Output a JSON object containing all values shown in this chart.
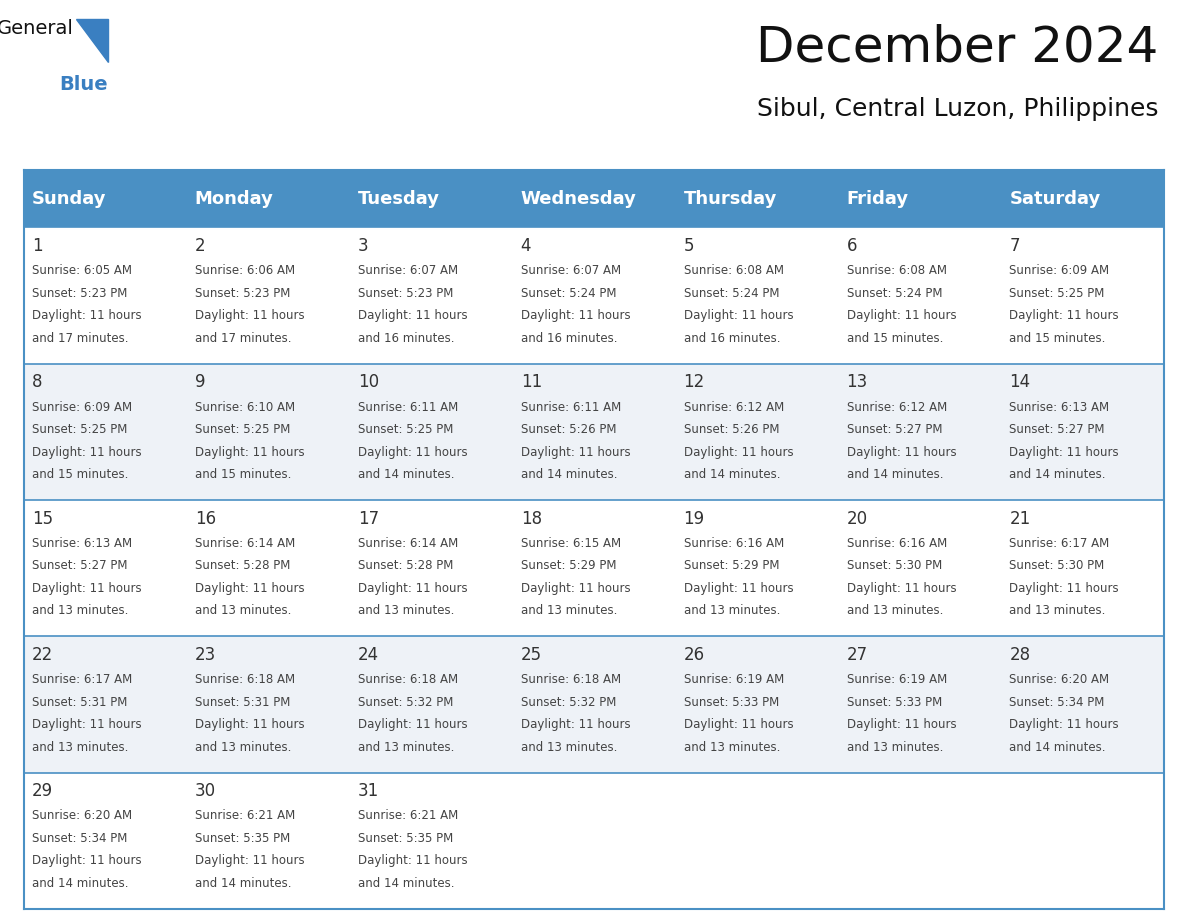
{
  "title": "December 2024",
  "subtitle": "Sibul, Central Luzon, Philippines",
  "header_color": "#4a90c4",
  "header_text_color": "#ffffff",
  "day_names": [
    "Sunday",
    "Monday",
    "Tuesday",
    "Wednesday",
    "Thursday",
    "Friday",
    "Saturday"
  ],
  "grid_line_color": "#4a90c4",
  "day_num_color": "#333333",
  "cell_text_color": "#444444",
  "title_fontsize": 36,
  "subtitle_fontsize": 18,
  "header_fontsize": 13,
  "day_num_fontsize": 12,
  "cell_fontsize": 8.5,
  "row_colors": [
    "#ffffff",
    "#eef2f7"
  ],
  "weeks": [
    [
      {
        "day": 1,
        "sunrise": "6:05 AM",
        "sunset": "5:23 PM",
        "daylight_line1": "Daylight: 11 hours",
        "daylight_line2": "and 17 minutes."
      },
      {
        "day": 2,
        "sunrise": "6:06 AM",
        "sunset": "5:23 PM",
        "daylight_line1": "Daylight: 11 hours",
        "daylight_line2": "and 17 minutes."
      },
      {
        "day": 3,
        "sunrise": "6:07 AM",
        "sunset": "5:23 PM",
        "daylight_line1": "Daylight: 11 hours",
        "daylight_line2": "and 16 minutes."
      },
      {
        "day": 4,
        "sunrise": "6:07 AM",
        "sunset": "5:24 PM",
        "daylight_line1": "Daylight: 11 hours",
        "daylight_line2": "and 16 minutes."
      },
      {
        "day": 5,
        "sunrise": "6:08 AM",
        "sunset": "5:24 PM",
        "daylight_line1": "Daylight: 11 hours",
        "daylight_line2": "and 16 minutes."
      },
      {
        "day": 6,
        "sunrise": "6:08 AM",
        "sunset": "5:24 PM",
        "daylight_line1": "Daylight: 11 hours",
        "daylight_line2": "and 15 minutes."
      },
      {
        "day": 7,
        "sunrise": "6:09 AM",
        "sunset": "5:25 PM",
        "daylight_line1": "Daylight: 11 hours",
        "daylight_line2": "and 15 minutes."
      }
    ],
    [
      {
        "day": 8,
        "sunrise": "6:09 AM",
        "sunset": "5:25 PM",
        "daylight_line1": "Daylight: 11 hours",
        "daylight_line2": "and 15 minutes."
      },
      {
        "day": 9,
        "sunrise": "6:10 AM",
        "sunset": "5:25 PM",
        "daylight_line1": "Daylight: 11 hours",
        "daylight_line2": "and 15 minutes."
      },
      {
        "day": 10,
        "sunrise": "6:11 AM",
        "sunset": "5:25 PM",
        "daylight_line1": "Daylight: 11 hours",
        "daylight_line2": "and 14 minutes."
      },
      {
        "day": 11,
        "sunrise": "6:11 AM",
        "sunset": "5:26 PM",
        "daylight_line1": "Daylight: 11 hours",
        "daylight_line2": "and 14 minutes."
      },
      {
        "day": 12,
        "sunrise": "6:12 AM",
        "sunset": "5:26 PM",
        "daylight_line1": "Daylight: 11 hours",
        "daylight_line2": "and 14 minutes."
      },
      {
        "day": 13,
        "sunrise": "6:12 AM",
        "sunset": "5:27 PM",
        "daylight_line1": "Daylight: 11 hours",
        "daylight_line2": "and 14 minutes."
      },
      {
        "day": 14,
        "sunrise": "6:13 AM",
        "sunset": "5:27 PM",
        "daylight_line1": "Daylight: 11 hours",
        "daylight_line2": "and 14 minutes."
      }
    ],
    [
      {
        "day": 15,
        "sunrise": "6:13 AM",
        "sunset": "5:27 PM",
        "daylight_line1": "Daylight: 11 hours",
        "daylight_line2": "and 13 minutes."
      },
      {
        "day": 16,
        "sunrise": "6:14 AM",
        "sunset": "5:28 PM",
        "daylight_line1": "Daylight: 11 hours",
        "daylight_line2": "and 13 minutes."
      },
      {
        "day": 17,
        "sunrise": "6:14 AM",
        "sunset": "5:28 PM",
        "daylight_line1": "Daylight: 11 hours",
        "daylight_line2": "and 13 minutes."
      },
      {
        "day": 18,
        "sunrise": "6:15 AM",
        "sunset": "5:29 PM",
        "daylight_line1": "Daylight: 11 hours",
        "daylight_line2": "and 13 minutes."
      },
      {
        "day": 19,
        "sunrise": "6:16 AM",
        "sunset": "5:29 PM",
        "daylight_line1": "Daylight: 11 hours",
        "daylight_line2": "and 13 minutes."
      },
      {
        "day": 20,
        "sunrise": "6:16 AM",
        "sunset": "5:30 PM",
        "daylight_line1": "Daylight: 11 hours",
        "daylight_line2": "and 13 minutes."
      },
      {
        "day": 21,
        "sunrise": "6:17 AM",
        "sunset": "5:30 PM",
        "daylight_line1": "Daylight: 11 hours",
        "daylight_line2": "and 13 minutes."
      }
    ],
    [
      {
        "day": 22,
        "sunrise": "6:17 AM",
        "sunset": "5:31 PM",
        "daylight_line1": "Daylight: 11 hours",
        "daylight_line2": "and 13 minutes."
      },
      {
        "day": 23,
        "sunrise": "6:18 AM",
        "sunset": "5:31 PM",
        "daylight_line1": "Daylight: 11 hours",
        "daylight_line2": "and 13 minutes."
      },
      {
        "day": 24,
        "sunrise": "6:18 AM",
        "sunset": "5:32 PM",
        "daylight_line1": "Daylight: 11 hours",
        "daylight_line2": "and 13 minutes."
      },
      {
        "day": 25,
        "sunrise": "6:18 AM",
        "sunset": "5:32 PM",
        "daylight_line1": "Daylight: 11 hours",
        "daylight_line2": "and 13 minutes."
      },
      {
        "day": 26,
        "sunrise": "6:19 AM",
        "sunset": "5:33 PM",
        "daylight_line1": "Daylight: 11 hours",
        "daylight_line2": "and 13 minutes."
      },
      {
        "day": 27,
        "sunrise": "6:19 AM",
        "sunset": "5:33 PM",
        "daylight_line1": "Daylight: 11 hours",
        "daylight_line2": "and 13 minutes."
      },
      {
        "day": 28,
        "sunrise": "6:20 AM",
        "sunset": "5:34 PM",
        "daylight_line1": "Daylight: 11 hours",
        "daylight_line2": "and 14 minutes."
      }
    ],
    [
      {
        "day": 29,
        "sunrise": "6:20 AM",
        "sunset": "5:34 PM",
        "daylight_line1": "Daylight: 11 hours",
        "daylight_line2": "and 14 minutes."
      },
      {
        "day": 30,
        "sunrise": "6:21 AM",
        "sunset": "5:35 PM",
        "daylight_line1": "Daylight: 11 hours",
        "daylight_line2": "and 14 minutes."
      },
      {
        "day": 31,
        "sunrise": "6:21 AM",
        "sunset": "5:35 PM",
        "daylight_line1": "Daylight: 11 hours",
        "daylight_line2": "and 14 minutes."
      },
      null,
      null,
      null,
      null
    ]
  ]
}
